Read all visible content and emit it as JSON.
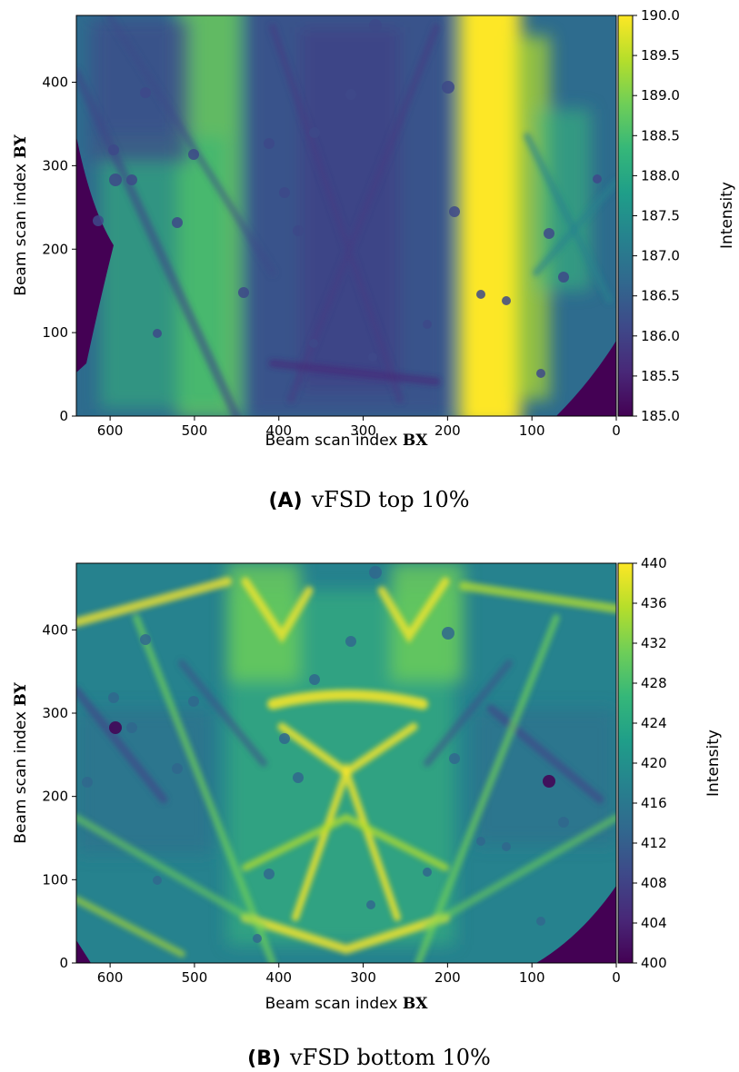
{
  "chart_data": [
    {
      "type": "heatmap",
      "panel_letter": "(A)",
      "caption": "vFSD top 10%",
      "xlabel_prefix": "Beam scan index ",
      "xlabel_symbol": "BX",
      "ylabel_prefix": "Beam scan index ",
      "ylabel_symbol": "BY",
      "colorbar_label": "Intensity",
      "xlim": [
        640,
        0
      ],
      "ylim": [
        0,
        480
      ],
      "x_ticks": [
        600,
        500,
        400,
        300,
        200,
        100,
        0
      ],
      "y_ticks": [
        0,
        100,
        200,
        300,
        400
      ],
      "color_range": [
        185.0,
        190.0
      ],
      "colorbar_ticks": [
        "185.0",
        "185.5",
        "186.0",
        "186.5",
        "187.0",
        "187.5",
        "188.0",
        "188.5",
        "189.0",
        "189.5",
        "190.0"
      ],
      "colormap": [
        "#440154",
        "#482878",
        "#3e4989",
        "#31688e",
        "#26828e",
        "#1f9e89",
        "#35b779",
        "#6ece58",
        "#b5de2b",
        "#fde725"
      ]
    },
    {
      "type": "heatmap",
      "panel_letter": "(B)",
      "caption": "vFSD bottom 10%",
      "xlabel_prefix": "Beam scan index ",
      "xlabel_symbol": "BX",
      "ylabel_prefix": "Beam scan index ",
      "ylabel_symbol": "BY",
      "colorbar_label": "Intensity",
      "xlim": [
        640,
        0
      ],
      "ylim": [
        0,
        480
      ],
      "x_ticks": [
        600,
        500,
        400,
        300,
        200,
        100,
        0
      ],
      "y_ticks": [
        0,
        100,
        200,
        300,
        400
      ],
      "color_range": [
        400,
        440
      ],
      "colorbar_ticks": [
        "400",
        "404",
        "408",
        "412",
        "416",
        "420",
        "424",
        "428",
        "432",
        "436",
        "440"
      ],
      "colormap": [
        "#440154",
        "#482878",
        "#3e4989",
        "#31688e",
        "#26828e",
        "#1f9e89",
        "#35b779",
        "#6ece58",
        "#b5de2b",
        "#fde725"
      ]
    }
  ]
}
